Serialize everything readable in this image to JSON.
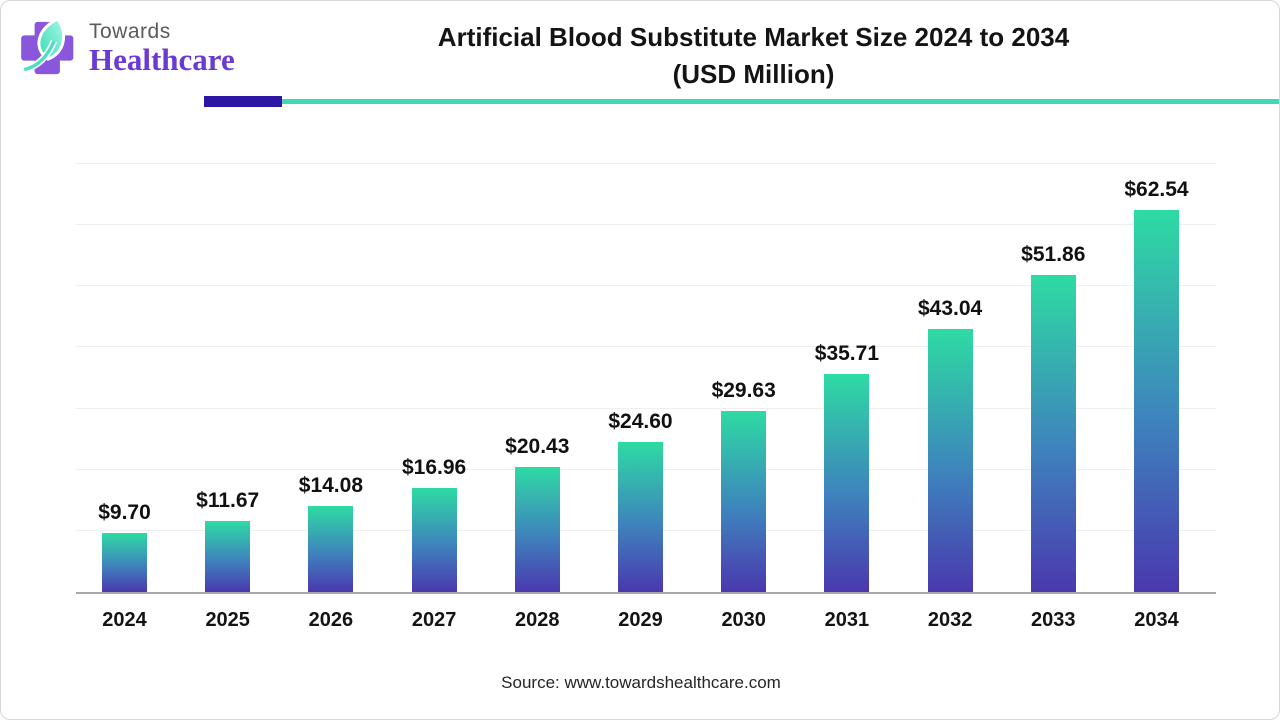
{
  "brand": {
    "towards": "Towards",
    "healthcare": "Healthcare",
    "cross_color": "#8a57dc",
    "leaf_color_light": "#8df2da",
    "leaf_color_dark": "#35dcb8"
  },
  "header": {
    "title_line1": "Artificial Blood Substitute Market Size 2024 to 2034",
    "title_line2": "(USD Million)",
    "accent_purple": "#2d16a3",
    "accent_teal": "#43d8b5"
  },
  "chart_data": {
    "type": "bar",
    "title": "Artificial Blood Substitute Market Size 2024 to 2034 (USD Million)",
    "categories": [
      "2024",
      "2025",
      "2026",
      "2027",
      "2028",
      "2029",
      "2030",
      "2031",
      "2032",
      "2033",
      "2034"
    ],
    "values": [
      9.7,
      11.67,
      14.08,
      16.96,
      20.43,
      24.6,
      29.63,
      35.71,
      43.04,
      51.86,
      62.54
    ],
    "value_labels": [
      "$9.70",
      "$11.67",
      "$14.08",
      "$16.96",
      "$20.43",
      "$24.60",
      "$29.63",
      "$35.71",
      "$43.04",
      "$51.86",
      "$62.54"
    ],
    "xlabel": "",
    "ylabel": "",
    "ylim": [
      0,
      70
    ],
    "grid_step": 10,
    "grid": true,
    "legend": false,
    "bar_gradient_top": "#2edba3",
    "bar_gradient_mid": "#3e83bd",
    "bar_gradient_bottom": "#4a38ae"
  },
  "footer": {
    "source": "Source: www.towardshealthcare.com"
  }
}
